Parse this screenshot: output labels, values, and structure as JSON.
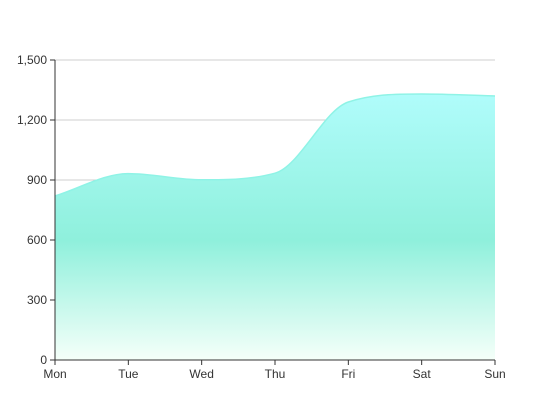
{
  "chart_data": {
    "type": "area",
    "title": "",
    "xlabel": "",
    "ylabel": "",
    "categories": [
      "Mon",
      "Tue",
      "Wed",
      "Thu",
      "Fri",
      "Sat",
      "Sun"
    ],
    "series": [
      {
        "values": [
          820,
          932,
          901,
          934,
          1290,
          1330,
          1320
        ]
      }
    ],
    "ylim": [
      0,
      1500
    ],
    "y_ticks": [
      0,
      300,
      600,
      900,
      1200,
      1500
    ],
    "y_tick_labels": [
      "0",
      "300",
      "600",
      "900",
      "1,200",
      "1,500"
    ],
    "grid": true,
    "legend": "none",
    "smooth": true,
    "colors": {
      "line": "#8ff3e6",
      "fill_top": "#b0fcfb",
      "fill_mid": "#8ff0dc",
      "fill_bottom": "#f5fff9",
      "grid": "#cfcfcf",
      "axis": "#333333"
    }
  }
}
